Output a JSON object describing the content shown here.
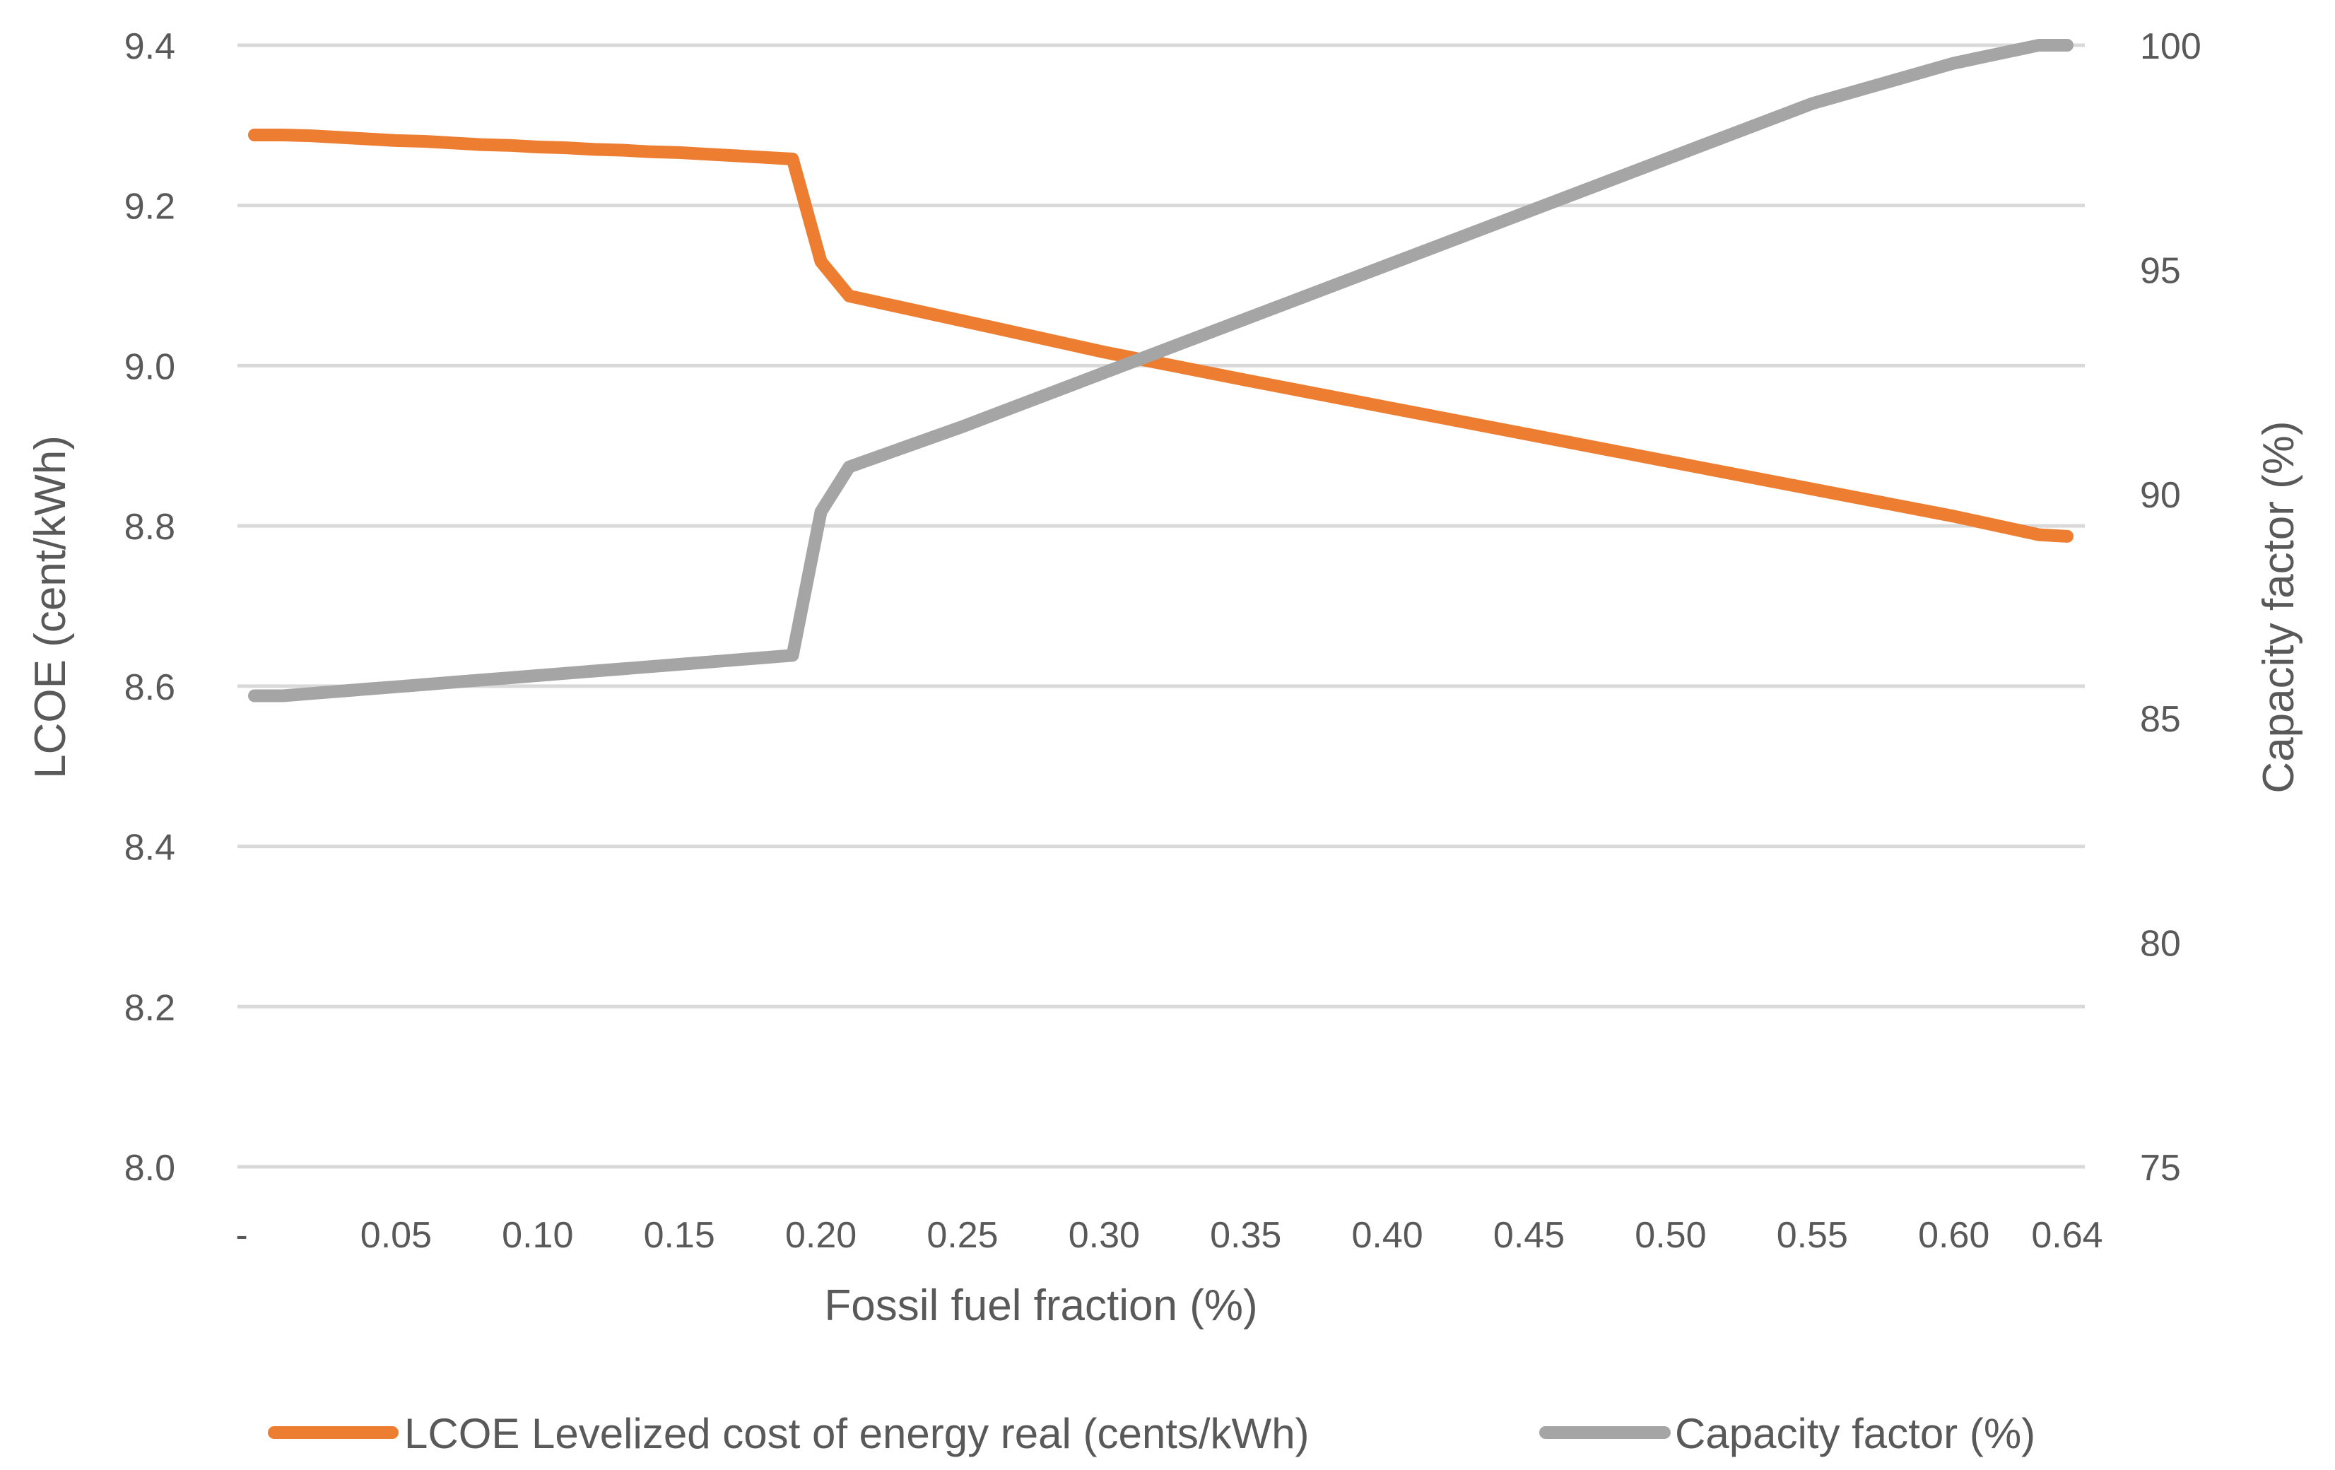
{
  "chart_data": {
    "type": "line",
    "title": "",
    "xlabel": "Fossil fuel fraction (%)",
    "ylabel": "LCOE (cent/kWh)",
    "y2label": "Capacity factor (%)",
    "x_tick_labels": [
      "-",
      "0.05",
      "0.10",
      "0.15",
      "0.20",
      "0.25",
      "0.30",
      "0.35",
      "0.40",
      "0.45",
      "0.50",
      "0.55",
      "0.60",
      "0.64"
    ],
    "xlim": [
      0,
      0.64
    ],
    "ylim": [
      8.0,
      9.4
    ],
    "y_ticks": [
      "8.0",
      "8.2",
      "8.4",
      "8.6",
      "8.8",
      "9.0",
      "9.2",
      "9.4"
    ],
    "y2lim": [
      75,
      100
    ],
    "y2_ticks": [
      "75",
      "80",
      "85",
      "90",
      "95",
      "100"
    ],
    "grid": true,
    "legend_position": "bottom",
    "series": [
      {
        "name": "LCOE Levelized cost of energy real (cents/kWh)",
        "axis": "left",
        "color": "#ED7D31",
        "x": [
          0,
          0.01,
          0.02,
          0.03,
          0.04,
          0.05,
          0.06,
          0.07,
          0.08,
          0.09,
          0.1,
          0.11,
          0.12,
          0.13,
          0.14,
          0.15,
          0.16,
          0.17,
          0.18,
          0.19,
          0.2,
          0.21,
          0.25,
          0.3,
          0.35,
          0.4,
          0.45,
          0.5,
          0.55,
          0.6,
          0.63,
          0.64
        ],
        "values": [
          9.288,
          9.288,
          9.287,
          9.285,
          9.283,
          9.281,
          9.28,
          9.278,
          9.276,
          9.275,
          9.273,
          9.272,
          9.27,
          9.269,
          9.267,
          9.266,
          9.264,
          9.262,
          9.26,
          9.258,
          9.13,
          9.087,
          9.056,
          9.017,
          8.982,
          8.948,
          8.914,
          8.88,
          8.846,
          8.812,
          8.789,
          8.787
        ]
      },
      {
        "name": "Capacity factor (%)",
        "axis": "right",
        "color": "#A5A5A5",
        "x": [
          0,
          0.01,
          0.02,
          0.03,
          0.04,
          0.05,
          0.06,
          0.07,
          0.08,
          0.09,
          0.1,
          0.11,
          0.12,
          0.13,
          0.14,
          0.15,
          0.16,
          0.17,
          0.18,
          0.19,
          0.2,
          0.21,
          0.25,
          0.3,
          0.35,
          0.4,
          0.45,
          0.5,
          0.55,
          0.6,
          0.63,
          0.64
        ],
        "values": [
          85.5,
          85.5,
          85.55,
          85.6,
          85.65,
          85.7,
          85.75,
          85.8,
          85.85,
          85.9,
          85.95,
          86.0,
          86.05,
          86.1,
          86.15,
          86.2,
          86.25,
          86.3,
          86.35,
          86.4,
          89.6,
          90.6,
          91.5,
          92.7,
          93.9,
          95.1,
          96.3,
          97.5,
          98.7,
          99.6,
          100,
          100
        ]
      }
    ]
  }
}
